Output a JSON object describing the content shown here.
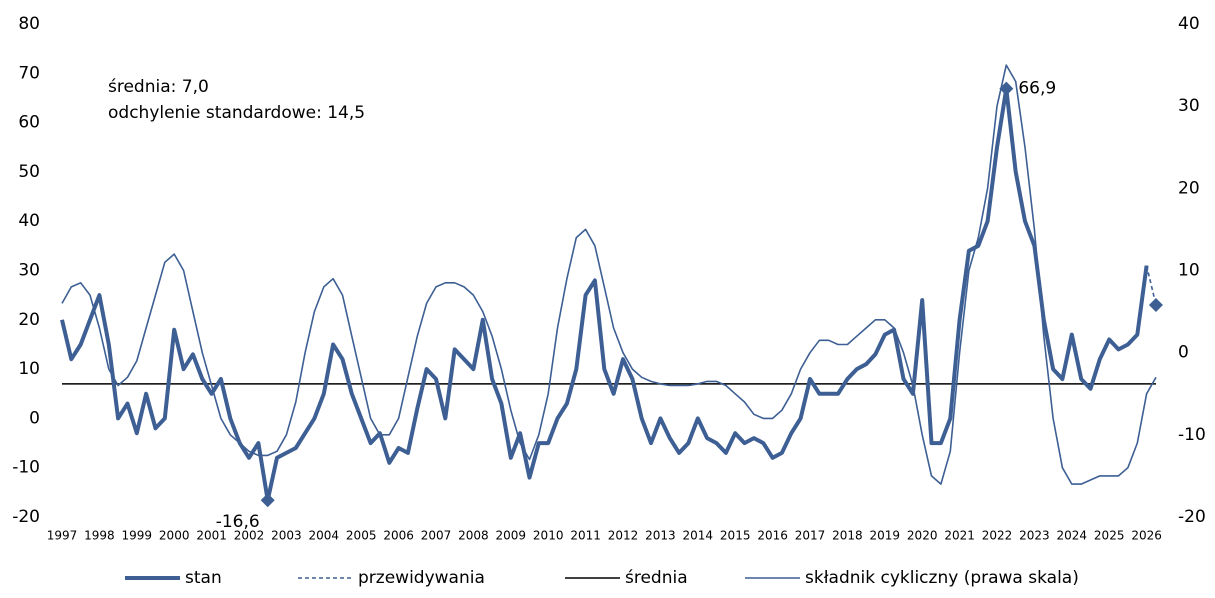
{
  "chart_data": {
    "type": "line",
    "annotations": [
      "średnia: 7,0",
      "odchylenie standardowe: 14,5"
    ],
    "categories": [
      "1997",
      null,
      null,
      null,
      "1998",
      null,
      null,
      null,
      "1999",
      null,
      null,
      null,
      "2000",
      null,
      null,
      null,
      "2001",
      null,
      null,
      null,
      "2002",
      null,
      null,
      null,
      "2003",
      null,
      null,
      null,
      "2004",
      null,
      null,
      null,
      "2005",
      null,
      null,
      null,
      "2006",
      null,
      null,
      null,
      "2007",
      null,
      null,
      null,
      "2008",
      null,
      null,
      null,
      "2009",
      null,
      null,
      null,
      "2010",
      null,
      null,
      null,
      "2011",
      null,
      null,
      null,
      "2012",
      null,
      null,
      null,
      "2013",
      null,
      null,
      null,
      "2014",
      null,
      null,
      null,
      "2015",
      null,
      null,
      null,
      "2016",
      null,
      null,
      null,
      "2017",
      null,
      null,
      null,
      "2018",
      null,
      null,
      null,
      "2019",
      null,
      null,
      null,
      "2020",
      null,
      null,
      null,
      "2021",
      null,
      null,
      null,
      "2022",
      null,
      null,
      null,
      "2023",
      null,
      null,
      null,
      "2024",
      null,
      null,
      null,
      "2025",
      null,
      null,
      null,
      "2026",
      null
    ],
    "series": [
      {
        "name": "stan",
        "color": "#3d5f94",
        "style": "thick",
        "values": [
          20,
          12,
          15,
          20,
          25,
          15,
          0,
          3,
          -3,
          5,
          -2,
          0,
          18,
          10,
          13,
          8,
          5,
          8,
          0,
          -5,
          -8,
          -5,
          -16.6,
          -8,
          -7,
          -6,
          -3,
          0,
          5,
          15,
          12,
          5,
          0,
          -5,
          -3,
          -9,
          -6,
          -7,
          2,
          10,
          8,
          0,
          14,
          12,
          10,
          20,
          8,
          3,
          -8,
          -3,
          -12,
          -5,
          -5,
          0,
          3,
          10,
          25,
          28,
          10,
          5,
          12,
          8,
          0,
          -5,
          0,
          -4,
          -7,
          -5,
          0,
          -4,
          -5,
          -7,
          -3,
          -5,
          -4,
          -5,
          -8,
          -7,
          -3,
          0,
          8,
          5,
          5,
          5,
          8,
          10,
          11,
          13,
          17,
          18,
          8,
          5,
          24,
          -5,
          -5,
          0,
          20,
          34,
          35,
          40,
          55,
          66.9,
          50,
          40,
          35,
          20,
          10,
          8,
          17,
          8,
          6,
          12,
          16,
          14,
          15,
          17,
          31,
          null
        ],
        "value_labels": [
          null,
          null,
          null,
          null,
          null,
          null,
          null,
          null,
          null,
          null,
          null,
          null,
          null,
          null,
          null,
          null,
          null,
          null,
          null,
          null,
          null,
          null,
          "-16,6",
          null,
          null,
          null,
          null,
          null,
          null,
          null,
          null,
          null,
          null,
          null,
          null,
          null,
          null,
          null,
          null,
          null,
          null,
          null,
          null,
          null,
          null,
          null,
          null,
          null,
          null,
          null,
          null,
          null,
          null,
          null,
          null,
          null,
          null,
          null,
          null,
          null,
          null,
          null,
          null,
          null,
          null,
          null,
          null,
          null,
          null,
          null,
          null,
          null,
          null,
          null,
          null,
          null,
          null,
          null,
          null,
          null,
          null,
          null,
          null,
          null,
          null,
          null,
          null,
          null,
          null,
          null,
          null,
          null,
          null,
          null,
          null,
          null,
          null,
          null,
          null,
          null,
          null,
          "66,9",
          null,
          null,
          null,
          null,
          null,
          null,
          null,
          null,
          null,
          null,
          null,
          null,
          null,
          null,
          null,
          null
        ]
      },
      {
        "name": "przewidywania",
        "color": "#3d5f94",
        "style": "dashed",
        "values": [
          null,
          null,
          null,
          null,
          null,
          null,
          null,
          null,
          null,
          null,
          null,
          null,
          null,
          null,
          null,
          null,
          null,
          null,
          null,
          null,
          null,
          null,
          null,
          null,
          null,
          null,
          null,
          null,
          null,
          null,
          null,
          null,
          null,
          null,
          null,
          null,
          null,
          null,
          null,
          null,
          null,
          null,
          null,
          null,
          null,
          null,
          null,
          null,
          null,
          null,
          null,
          null,
          null,
          null,
          null,
          null,
          null,
          null,
          null,
          null,
          null,
          null,
          null,
          null,
          null,
          null,
          null,
          null,
          null,
          null,
          null,
          null,
          null,
          null,
          null,
          null,
          null,
          null,
          null,
          null,
          null,
          null,
          null,
          null,
          null,
          null,
          null,
          null,
          null,
          null,
          null,
          null,
          null,
          null,
          null,
          null,
          null,
          null,
          null,
          null,
          null,
          null,
          null,
          null,
          null,
          null,
          null,
          null,
          null,
          null,
          null,
          null,
          null,
          null,
          null,
          null,
          31,
          23
        ]
      },
      {
        "name": "średnia",
        "color": "#000000",
        "style": "thin",
        "values": [
          7,
          7,
          7,
          7,
          7,
          7,
          7,
          7,
          7,
          7,
          7,
          7,
          7,
          7,
          7,
          7,
          7,
          7,
          7,
          7,
          7,
          7,
          7,
          7,
          7,
          7,
          7,
          7,
          7,
          7,
          7,
          7,
          7,
          7,
          7,
          7,
          7,
          7,
          7,
          7,
          7,
          7,
          7,
          7,
          7,
          7,
          7,
          7,
          7,
          7,
          7,
          7,
          7,
          7,
          7,
          7,
          7,
          7,
          7,
          7,
          7,
          7,
          7,
          7,
          7,
          7,
          7,
          7,
          7,
          7,
          7,
          7,
          7,
          7,
          7,
          7,
          7,
          7,
          7,
          7,
          7,
          7,
          7,
          7,
          7,
          7,
          7,
          7,
          7,
          7,
          7,
          7,
          7,
          7,
          7,
          7,
          7,
          7,
          7,
          7,
          7,
          7,
          7,
          7,
          7,
          7,
          7,
          7,
          7,
          7,
          7,
          7,
          7,
          7,
          7,
          7,
          7,
          7
        ]
      },
      {
        "name": "składnik cykliczny (prawa skala)",
        "color": "#3d5f94",
        "style": "thin",
        "axis": "y2",
        "values": [
          6,
          8,
          8.5,
          7,
          3,
          -2,
          -4,
          -3,
          -1,
          3,
          7,
          11,
          12,
          10,
          5,
          0,
          -4,
          -8,
          -10,
          -11,
          -12,
          -12.5,
          -12.5,
          -12,
          -10,
          -6,
          0,
          5,
          8,
          9,
          7,
          2,
          -3,
          -8,
          -10,
          -10,
          -8,
          -3,
          2,
          6,
          8,
          8.5,
          8.5,
          8,
          7,
          5,
          2,
          -2,
          -7,
          -11,
          -13,
          -10,
          -5,
          3,
          9,
          14,
          15,
          13,
          8,
          3,
          0,
          -2,
          -3,
          -3.5,
          -3.8,
          -4,
          -4,
          -4,
          -3.8,
          -3.5,
          -3.5,
          -4,
          -5,
          -6,
          -7.5,
          -8,
          -8,
          -7,
          -5,
          -2,
          0,
          1.5,
          1.5,
          1,
          1,
          2,
          3,
          4,
          4,
          3,
          0,
          -4,
          -10,
          -15,
          -16,
          -12,
          0,
          10,
          14,
          20,
          30,
          35,
          33,
          25,
          15,
          2,
          -8,
          -14,
          -16,
          -16,
          -15.5,
          -15,
          -15,
          -15,
          -14,
          -11,
          -5,
          -3
        ]
      }
    ],
    "ylim": [
      -20,
      80
    ],
    "yticks": [
      -20,
      -10,
      0,
      10,
      20,
      30,
      40,
      50,
      60,
      70,
      80
    ],
    "y2lim": [
      -20,
      40
    ],
    "y2ticks": [
      -20,
      -10,
      0,
      10,
      20,
      30,
      40
    ],
    "legend": "bottom"
  }
}
